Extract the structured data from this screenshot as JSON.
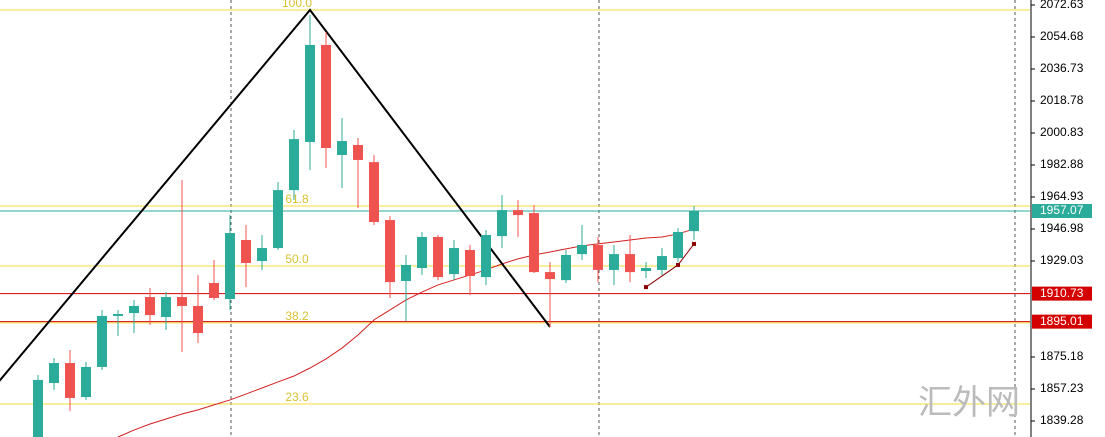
{
  "chart_data": {
    "type": "candlestick",
    "up_color": "#2bab9a",
    "down_color": "#ef5350",
    "open": [
      1830.3,
      1860.6,
      1871.8,
      1852.7,
      1869.6,
      1898.2,
      1899.8,
      1908.8,
      1897.6,
      1908.8,
      1903.8,
      1916.7,
      1907.7,
      1940.8,
      1929.0,
      1936.3,
      1968.8,
      1995.8,
      2050.2,
      1988.5,
      1994.1,
      1984.5,
      1952.0,
      1917.8,
      1925.1,
      1942.5,
      1921.7,
      1935.2,
      1920.0,
      1943.0,
      1957.6,
      1955.9,
      1922.8,
      1918.3,
      1932.9,
      1938.0,
      1924.0,
      1932.9,
      1923.4,
      1924.0,
      1930.7,
      1945.8
    ],
    "high": [
      1865.1,
      1874.6,
      1879.1,
      1872.4,
      1901.5,
      1901.5,
      1907.1,
      1913.9,
      1911.6,
      1974.4,
      1921.2,
      1929.6,
      1954.8,
      1949.2,
      1943.6,
      1973.3,
      2002.5,
      2067.0,
      2057.5,
      2009.2,
      1998.0,
      1988.5,
      1954.2,
      1932.4,
      1945.3,
      1943.6,
      1940.8,
      1938.0,
      1946.4,
      1966.0,
      1963.2,
      1960.4,
      1928.4,
      1935.2,
      1949.2,
      1942.5,
      1938.0,
      1943.6,
      1928.4,
      1936.3,
      1947.5,
      1959.9
    ],
    "low": [
      1830.3,
      1856.7,
      1844.9,
      1851.0,
      1867.9,
      1886.9,
      1888.6,
      1893.1,
      1890.3,
      1878.0,
      1883.0,
      1907.1,
      1901.5,
      1914.4,
      1924.0,
      1935.2,
      1963.2,
      1980.0,
      1981.2,
      1969.9,
      1958.7,
      1949.2,
      1908.3,
      1895.3,
      1921.2,
      1918.3,
      1918.3,
      1909.9,
      1915.5,
      1936.3,
      1942.5,
      1922.3,
      1892.0,
      1916.7,
      1929.6,
      1917.2,
      1915.5,
      1917.2,
      1919.5,
      1921.2,
      1928.4,
      1940.8
    ],
    "close": [
      1862.3,
      1871.8,
      1852.2,
      1869.6,
      1898.2,
      1899.3,
      1903.8,
      1898.7,
      1908.8,
      1903.8,
      1888.6,
      1908.3,
      1944.7,
      1927.9,
      1936.3,
      1968.8,
      1997.4,
      2050.2,
      1992.4,
      1996.3,
      1985.7,
      1950.9,
      1917.2,
      1926.8,
      1942.5,
      1920.0,
      1936.3,
      1920.6,
      1943.6,
      1957.6,
      1954.8,
      1922.8,
      1918.9,
      1932.4,
      1938.0,
      1924.0,
      1932.9,
      1922.8,
      1925.1,
      1931.8,
      1945.3,
      1957.07
    ],
    "moving_average": {
      "color": "#d42020",
      "values": [
        null,
        null,
        null,
        null,
        null,
        1830.3,
        1834.2,
        1837.6,
        1840.4,
        1843.2,
        1845.5,
        1848.3,
        1851.1,
        1854.4,
        1857.8,
        1861.2,
        1864.5,
        1869.0,
        1874.1,
        1880.2,
        1887.5,
        1896.0,
        1901.6,
        1907.2,
        1911.6,
        1915.6,
        1918.4,
        1921.2,
        1924.0,
        1927.4,
        1930.2,
        1932.4,
        1934.1,
        1935.8,
        1937.5,
        1938.6,
        1939.7,
        1940.8,
        1941.9,
        1942.5,
        1944.2,
        1947.0
      ]
    },
    "signal": {
      "color": "#8b0000",
      "x": [
        38,
        40,
        41
      ],
      "values": [
        1914.4,
        1926.8,
        1938.6
      ]
    },
    "zigzag": {
      "color": "#000000",
      "x": [
        -3,
        17,
        32
      ],
      "values": [
        1855.5,
        2069.8,
        1892.0
      ]
    },
    "fib_levels": [
      {
        "label": "100.0",
        "price": 2069.8
      },
      {
        "label": "61.8",
        "price": 1959.9
      },
      {
        "label": "50.0",
        "price": 1926.2
      },
      {
        "label": "38.2",
        "price": 1894.3
      },
      {
        "label": "23.6",
        "price": 1848.8
      }
    ],
    "fib_color": "#f0dc3c",
    "price_lines": [
      {
        "value": 1957.07,
        "color": "#2bab9a"
      },
      {
        "value": 1910.73,
        "color": "#d40000"
      },
      {
        "value": 1895.01,
        "color": "#d40000"
      }
    ],
    "ylim": [
      1830.3,
      2075.43
    ],
    "yticks": [
      2072.63,
      2054.68,
      2036.73,
      2018.78,
      2000.83,
      1982.88,
      1964.93,
      1946.98,
      1929.03,
      1875.18,
      1857.23,
      1839.28
    ],
    "watermark": "汇外网"
  }
}
